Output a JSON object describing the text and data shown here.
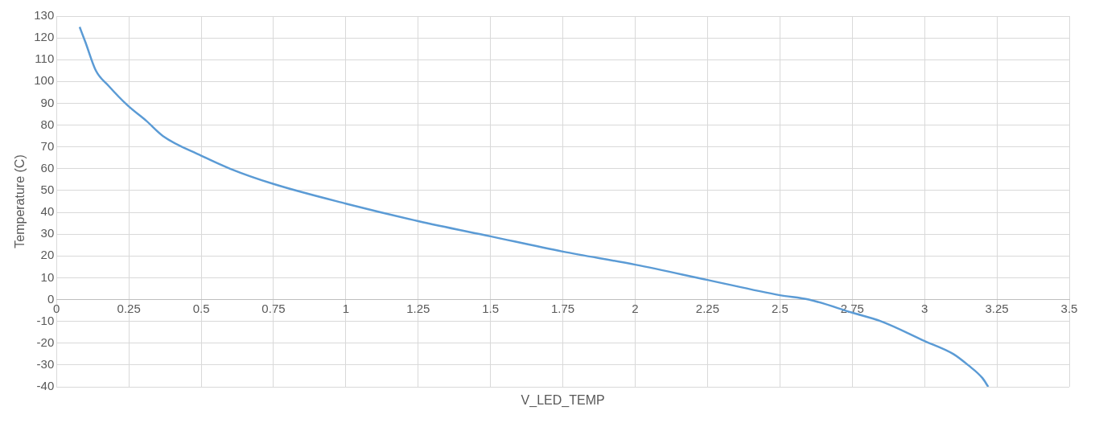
{
  "chart_data": {
    "type": "line",
    "xlabel": "V_LED_TEMP",
    "ylabel": "Temperature (C)",
    "series": [
      {
        "color": "#5b9bd5",
        "x": [
          0.08,
          0.1,
          0.136,
          0.18,
          0.246,
          0.31,
          0.368,
          0.5,
          0.6,
          0.75,
          1,
          1.25,
          1.5,
          1.75,
          2,
          2.25,
          2.5,
          2.6,
          2.75,
          2.85,
          3,
          3.1,
          3.15,
          3.2,
          3.22
        ],
        "values": [
          125,
          118,
          105,
          98,
          89,
          82,
          75,
          66,
          60,
          53,
          44,
          36,
          29,
          22,
          16,
          9,
          2,
          0,
          -6,
          -10,
          -19,
          -25,
          -30,
          -36,
          -40
        ]
      }
    ],
    "xlim": [
      0,
      3.5
    ],
    "xticks": [
      0,
      0.25,
      0.5,
      0.75,
      1,
      1.25,
      1.5,
      1.75,
      2,
      2.25,
      2.5,
      2.75,
      3,
      3.25,
      3.5
    ],
    "ylim": [
      -40,
      130
    ],
    "yticks": [
      -40,
      -30,
      -20,
      -10,
      0,
      10,
      20,
      30,
      40,
      50,
      60,
      70,
      80,
      90,
      100,
      110,
      120,
      130
    ],
    "grid": true,
    "legend": false,
    "marker": "none",
    "line_style": "solid"
  }
}
